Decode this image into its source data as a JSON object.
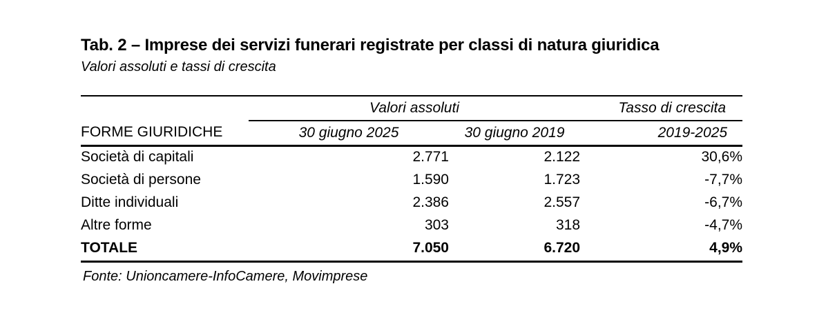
{
  "title": "Tab. 2 – Imprese dei servizi funerari registrate per classi di natura giuridica",
  "subtitle": "Valori assoluti e tassi di crescita",
  "table": {
    "group_headers": {
      "values": "Valori assoluti",
      "growth": "Tasso di crescita"
    },
    "column_headers": {
      "forme": "FORME GIURIDICHE",
      "date_2025": "30 giugno 2025",
      "date_2019": "30 giugno 2019",
      "period": "2019-2025"
    },
    "rows": [
      {
        "label": "Società di capitali",
        "v2025": "2.771",
        "v2019": "2.122",
        "growth": "30,6%"
      },
      {
        "label": "Società di persone",
        "v2025": "1.590",
        "v2019": "1.723",
        "growth": "-7,7%"
      },
      {
        "label": "Ditte individuali",
        "v2025": "2.386",
        "v2019": "2.557",
        "growth": "-6,7%"
      },
      {
        "label": "Altre forme",
        "v2025": "303",
        "v2019": "318",
        "growth": "-4,7%"
      }
    ],
    "total": {
      "label": "TOTALE",
      "v2025": "7.050",
      "v2019": "6.720",
      "growth": "4,9%"
    }
  },
  "source": "Fonte: Unioncamere-InfoCamere, Movimprese",
  "colors": {
    "text": "#000000",
    "background": "#ffffff",
    "rule": "#000000"
  }
}
